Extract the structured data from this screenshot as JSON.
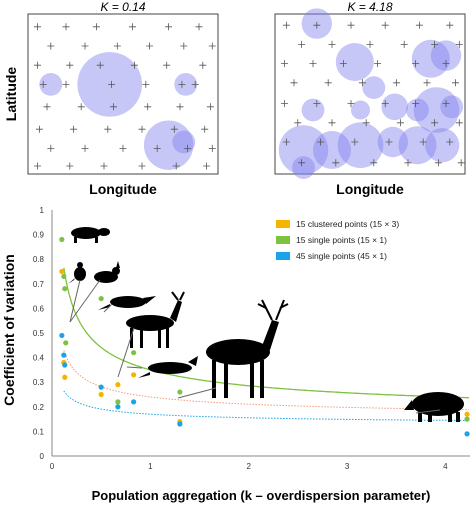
{
  "panels": [
    {
      "title": "K = 0.14",
      "xlabel": "Longitude",
      "ylabel": "Latitude",
      "points": [
        [
          0.05,
          0.08
        ],
        [
          0.2,
          0.08
        ],
        [
          0.36,
          0.08
        ],
        [
          0.55,
          0.08
        ],
        [
          0.74,
          0.08
        ],
        [
          0.9,
          0.08
        ],
        [
          0.12,
          0.2
        ],
        [
          0.3,
          0.2
        ],
        [
          0.47,
          0.2
        ],
        [
          0.64,
          0.2
        ],
        [
          0.82,
          0.2
        ],
        [
          0.97,
          0.2
        ],
        [
          0.05,
          0.32
        ],
        [
          0.22,
          0.32
        ],
        [
          0.38,
          0.32
        ],
        [
          0.56,
          0.32
        ],
        [
          0.73,
          0.32
        ],
        [
          0.92,
          0.32
        ],
        [
          0.08,
          0.44
        ],
        [
          0.2,
          0.44
        ],
        [
          0.44,
          0.44
        ],
        [
          0.62,
          0.44
        ],
        [
          0.81,
          0.44
        ],
        [
          0.88,
          0.44
        ],
        [
          0.1,
          0.58
        ],
        [
          0.28,
          0.58
        ],
        [
          0.45,
          0.58
        ],
        [
          0.63,
          0.58
        ],
        [
          0.8,
          0.58
        ],
        [
          0.96,
          0.58
        ],
        [
          0.06,
          0.72
        ],
        [
          0.24,
          0.72
        ],
        [
          0.42,
          0.72
        ],
        [
          0.6,
          0.72
        ],
        [
          0.77,
          0.72
        ],
        [
          0.93,
          0.72
        ],
        [
          0.12,
          0.84
        ],
        [
          0.3,
          0.84
        ],
        [
          0.5,
          0.84
        ],
        [
          0.68,
          0.84
        ],
        [
          0.84,
          0.84
        ],
        [
          0.97,
          0.84
        ],
        [
          0.05,
          0.95
        ],
        [
          0.22,
          0.95
        ],
        [
          0.4,
          0.95
        ],
        [
          0.6,
          0.95
        ],
        [
          0.78,
          0.95
        ],
        [
          0.94,
          0.95
        ]
      ],
      "circles": [
        [
          0.12,
          0.44,
          0.06
        ],
        [
          0.43,
          0.44,
          0.17
        ],
        [
          0.83,
          0.44,
          0.06
        ],
        [
          0.74,
          0.82,
          0.13
        ],
        [
          0.82,
          0.8,
          0.06
        ]
      ]
    },
    {
      "title": "K = 4.18",
      "xlabel": "Longitude",
      "ylabel": "",
      "points": [
        [
          0.06,
          0.07
        ],
        [
          0.22,
          0.07
        ],
        [
          0.4,
          0.07
        ],
        [
          0.58,
          0.07
        ],
        [
          0.76,
          0.07
        ],
        [
          0.92,
          0.07
        ],
        [
          0.14,
          0.19
        ],
        [
          0.3,
          0.19
        ],
        [
          0.5,
          0.19
        ],
        [
          0.68,
          0.19
        ],
        [
          0.84,
          0.19
        ],
        [
          0.97,
          0.19
        ],
        [
          0.05,
          0.31
        ],
        [
          0.2,
          0.31
        ],
        [
          0.36,
          0.31
        ],
        [
          0.54,
          0.31
        ],
        [
          0.74,
          0.31
        ],
        [
          0.9,
          0.31
        ],
        [
          0.1,
          0.43
        ],
        [
          0.28,
          0.43
        ],
        [
          0.46,
          0.43
        ],
        [
          0.64,
          0.43
        ],
        [
          0.8,
          0.43
        ],
        [
          0.95,
          0.43
        ],
        [
          0.05,
          0.56
        ],
        [
          0.22,
          0.56
        ],
        [
          0.4,
          0.56
        ],
        [
          0.58,
          0.56
        ],
        [
          0.74,
          0.56
        ],
        [
          0.9,
          0.56
        ],
        [
          0.12,
          0.68
        ],
        [
          0.3,
          0.68
        ],
        [
          0.48,
          0.68
        ],
        [
          0.66,
          0.68
        ],
        [
          0.84,
          0.68
        ],
        [
          0.97,
          0.68
        ],
        [
          0.06,
          0.8
        ],
        [
          0.24,
          0.8
        ],
        [
          0.42,
          0.8
        ],
        [
          0.6,
          0.8
        ],
        [
          0.78,
          0.8
        ],
        [
          0.92,
          0.8
        ],
        [
          0.14,
          0.93
        ],
        [
          0.32,
          0.93
        ],
        [
          0.52,
          0.93
        ],
        [
          0.7,
          0.93
        ],
        [
          0.86,
          0.93
        ],
        [
          0.98,
          0.93
        ]
      ],
      "circles": [
        [
          0.22,
          0.06,
          0.08
        ],
        [
          0.82,
          0.28,
          0.1
        ],
        [
          0.9,
          0.26,
          0.08
        ],
        [
          0.42,
          0.3,
          0.1
        ],
        [
          0.52,
          0.46,
          0.06
        ],
        [
          0.2,
          0.6,
          0.06
        ],
        [
          0.45,
          0.6,
          0.05
        ],
        [
          0.63,
          0.58,
          0.07
        ],
        [
          0.85,
          0.6,
          0.12
        ],
        [
          0.75,
          0.6,
          0.06
        ],
        [
          0.93,
          0.58,
          0.06
        ],
        [
          0.15,
          0.85,
          0.13
        ],
        [
          0.3,
          0.85,
          0.1
        ],
        [
          0.45,
          0.82,
          0.12
        ],
        [
          0.62,
          0.8,
          0.08
        ],
        [
          0.75,
          0.82,
          0.1
        ],
        [
          0.88,
          0.82,
          0.09
        ],
        [
          0.15,
          0.96,
          0.06
        ]
      ]
    }
  ],
  "chart_data": {
    "type": "scatter",
    "xlabel": "Population aggregation (k – overdispersion parameter)",
    "ylabel": "Coefficient of variation",
    "xlim": [
      0,
      4.25
    ],
    "ylim": [
      0,
      1.0
    ],
    "xticks": [
      0,
      1,
      2,
      3,
      4
    ],
    "yticks": [
      0,
      0.1,
      0.2,
      0.3,
      0.4,
      0.5,
      0.6,
      0.7,
      0.8,
      0.9,
      1
    ],
    "legend_position": "top-right",
    "series": [
      {
        "name": "15 clustered points (15 × 3)",
        "color": "#f5b400",
        "points": [
          [
            0.1,
            0.75
          ],
          [
            0.12,
            0.38
          ],
          [
            0.13,
            0.32
          ],
          [
            0.5,
            0.25
          ],
          [
            0.67,
            0.29
          ],
          [
            0.83,
            0.33
          ],
          [
            1.3,
            0.14
          ],
          [
            4.22,
            0.17
          ]
        ]
      },
      {
        "name": "15 single points (15 × 1)",
        "color": "#7dc242",
        "points": [
          [
            0.1,
            0.88
          ],
          [
            0.12,
            0.73
          ],
          [
            0.13,
            0.68
          ],
          [
            0.14,
            0.46
          ],
          [
            0.5,
            0.64
          ],
          [
            0.67,
            0.22
          ],
          [
            0.83,
            0.42
          ],
          [
            1.3,
            0.26
          ],
          [
            4.22,
            0.15
          ]
        ]
      },
      {
        "name": "45 single points (45 × 1)",
        "color": "#1aa3e8",
        "points": [
          [
            0.1,
            0.49
          ],
          [
            0.12,
            0.41
          ],
          [
            0.13,
            0.37
          ],
          [
            0.5,
            0.28
          ],
          [
            0.67,
            0.2
          ],
          [
            0.83,
            0.22
          ],
          [
            1.3,
            0.13
          ],
          [
            4.22,
            0.09
          ]
        ]
      }
    ],
    "curves": [
      {
        "color": "#7dc242",
        "a": 0.22,
        "b": 0.13,
        "style": "solid"
      },
      {
        "color": "#f29a7a",
        "a": 0.1,
        "b": 0.14,
        "style": "dotted"
      },
      {
        "color": "#1aa3e8",
        "a": 0.05,
        "b": 0.12,
        "style": "dotted"
      }
    ]
  }
}
